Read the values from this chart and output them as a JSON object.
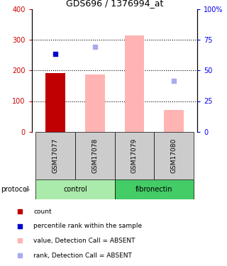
{
  "title": "GDS696 / 1376994_at",
  "samples": [
    "GSM17077",
    "GSM17078",
    "GSM17079",
    "GSM17080"
  ],
  "bar_width": 0.5,
  "left_ylim": [
    0,
    400
  ],
  "right_ylim": [
    0,
    100
  ],
  "left_yticks": [
    0,
    100,
    200,
    300,
    400
  ],
  "right_yticks": [
    0,
    25,
    50,
    75,
    100
  ],
  "right_yticklabels": [
    "0",
    "25",
    "50",
    "75",
    "100%"
  ],
  "dotted_lines": [
    100,
    200,
    300
  ],
  "count_bars": {
    "values": [
      192,
      null,
      null,
      null
    ],
    "color": "#c00000"
  },
  "value_absent_bars": {
    "values": [
      null,
      187,
      315,
      70
    ],
    "color": "#ffb3b3"
  },
  "rank_present_dots": {
    "values": [
      255,
      null,
      null,
      null
    ],
    "color": "#0000cc",
    "size": 25
  },
  "rank_absent_dots": {
    "values": [
      null,
      278,
      null,
      165
    ],
    "color": "#aaaaee",
    "size": 25
  },
  "groups": [
    {
      "label": "control",
      "samples": [
        0,
        1
      ],
      "color": "#aaeaaa"
    },
    {
      "label": "fibronectin",
      "samples": [
        2,
        3
      ],
      "color": "#44cc66"
    }
  ],
  "protocol_label": "protocol",
  "left_axis_color": "#cc0000",
  "right_axis_color": "#0000ee",
  "bg_color": "white",
  "sample_box_color": "#cccccc",
  "legend_items": [
    {
      "label": "count",
      "color": "#c00000",
      "marker": "s"
    },
    {
      "label": "percentile rank within the sample",
      "color": "#0000cc",
      "marker": "s"
    },
    {
      "label": "value, Detection Call = ABSENT",
      "color": "#ffb3b3",
      "marker": "s"
    },
    {
      "label": "rank, Detection Call = ABSENT",
      "color": "#aaaaee",
      "marker": "s"
    }
  ]
}
